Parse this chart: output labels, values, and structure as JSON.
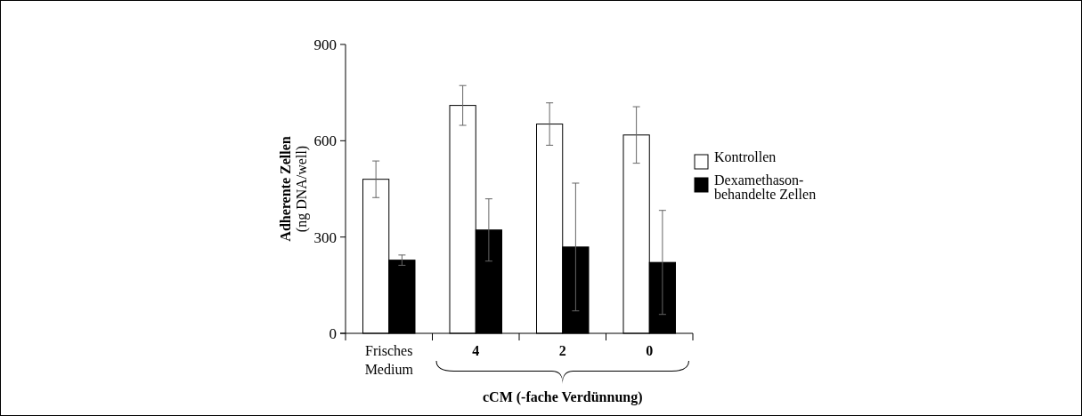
{
  "chart_data": {
    "type": "bar",
    "ylabel": "Adherente Zellen\n(ng DNA/well)",
    "xlabel": "cCM (-fache Verdünnung)",
    "categories": [
      "Frisches\nMedium",
      "4",
      "2",
      "0"
    ],
    "series": [
      {
        "name": "Kontrollen",
        "color": "#ffffff",
        "values": [
          480,
          710,
          652,
          618
        ],
        "errors": [
          57,
          62,
          66,
          88
        ]
      },
      {
        "name": "Dexamethason-\nbehandelte Zellen",
        "color": "#000000",
        "values": [
          228,
          322,
          269,
          221
        ],
        "errors": [
          16,
          97,
          199,
          162
        ]
      }
    ],
    "ylim": [
      0,
      900
    ],
    "yticks": [
      0,
      300,
      600,
      900
    ],
    "grid": false,
    "legend": "right"
  }
}
